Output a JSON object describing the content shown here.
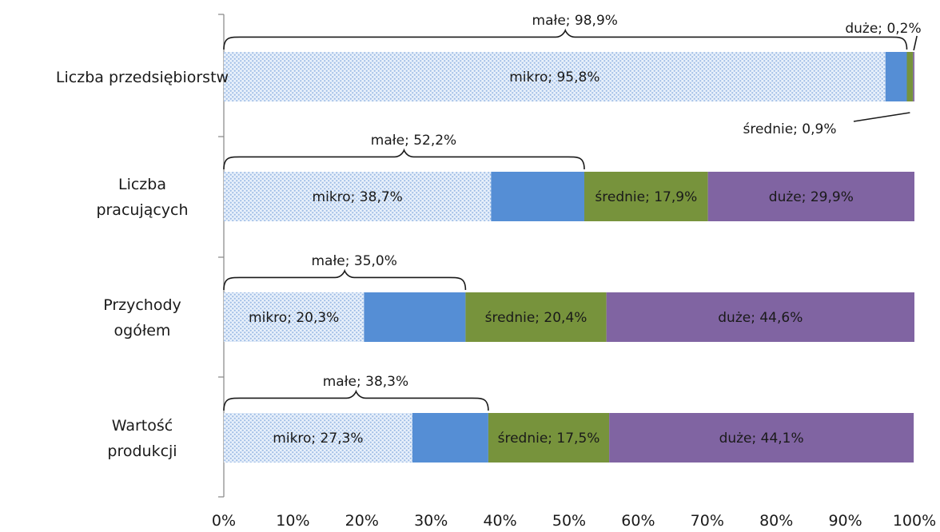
{
  "chart_data": {
    "type": "bar",
    "orientation": "horizontal",
    "stacked": true,
    "title": "",
    "xlabel": "",
    "ylabel": "",
    "xlim": [
      0,
      100
    ],
    "x_ticks": [
      "0%",
      "10%",
      "20%",
      "30%",
      "40%",
      "50%",
      "60%",
      "70%",
      "80%",
      "90%",
      "100%"
    ],
    "grid": false,
    "legend": "none",
    "categories": [
      [
        "Liczba przedsiębiorstw"
      ],
      [
        "Liczba",
        "pracujących"
      ],
      [
        "Przychody",
        "ogółem"
      ],
      [
        "Wartość",
        "produkcji"
      ]
    ],
    "series": [
      {
        "name": "mikro",
        "color": "#a9c6ea",
        "pattern": "dotted",
        "values": [
          95.8,
          38.7,
          20.3,
          27.3
        ]
      },
      {
        "name": "małe",
        "color": "#558ed5",
        "values": [
          3.1,
          13.5,
          14.7,
          11.0
        ]
      },
      {
        "name": "średnie",
        "color": "#77933c",
        "values": [
          0.9,
          17.9,
          20.4,
          17.5
        ]
      },
      {
        "name": "duże",
        "color": "#8064a2",
        "values": [
          0.2,
          29.9,
          44.6,
          44.1
        ]
      }
    ],
    "data_labels": [
      [
        "mikro; 95,8%",
        "",
        "",
        ""
      ],
      [
        "mikro; 38,7%",
        "",
        "średnie; 17,9%",
        "duże; 29,9%"
      ],
      [
        "mikro; 20,3%",
        "",
        "średnie; 20,4%",
        "duże; 44,6%"
      ],
      [
        "mikro; 27,3%",
        "",
        "średnie; 17,5%",
        "duże; 44,1%"
      ]
    ],
    "annotations": {
      "brace_labels": [
        "małe; 98,9%",
        "małe; 52,2%",
        "małe; 35,0%",
        "małe; 38,3%"
      ],
      "brace_extents": [
        98.9,
        52.2,
        35.0,
        38.3
      ],
      "callout_duze": "duże; 0,2%",
      "callout_srednie": "średnie; 0,9%"
    }
  }
}
